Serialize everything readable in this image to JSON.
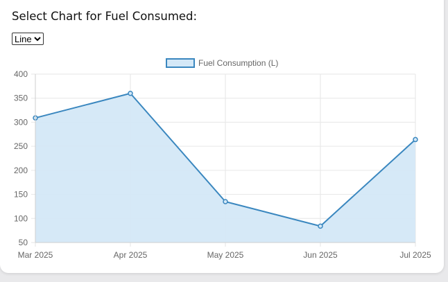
{
  "heading": "Select Chart for Fuel Consumed:",
  "chart_type_select": {
    "selected": "Line"
  },
  "colors": {
    "line": "#3a87bf",
    "fill": "#d4e8f7",
    "grid": "#e6e6e6"
  },
  "chart_data": {
    "type": "line",
    "categories": [
      "Mar 2025",
      "Apr 2025",
      "May 2025",
      "Jun 2025",
      "Jul 2025"
    ],
    "series": [
      {
        "name": "Fuel Consumption (L)",
        "values": [
          309,
          360,
          135,
          84,
          264
        ]
      }
    ],
    "ylim": [
      50,
      400
    ],
    "yticks": [
      "400",
      "350",
      "300",
      "250",
      "200",
      "150",
      "100",
      "50"
    ],
    "fill": true,
    "grid": true,
    "legend": "top-center"
  }
}
